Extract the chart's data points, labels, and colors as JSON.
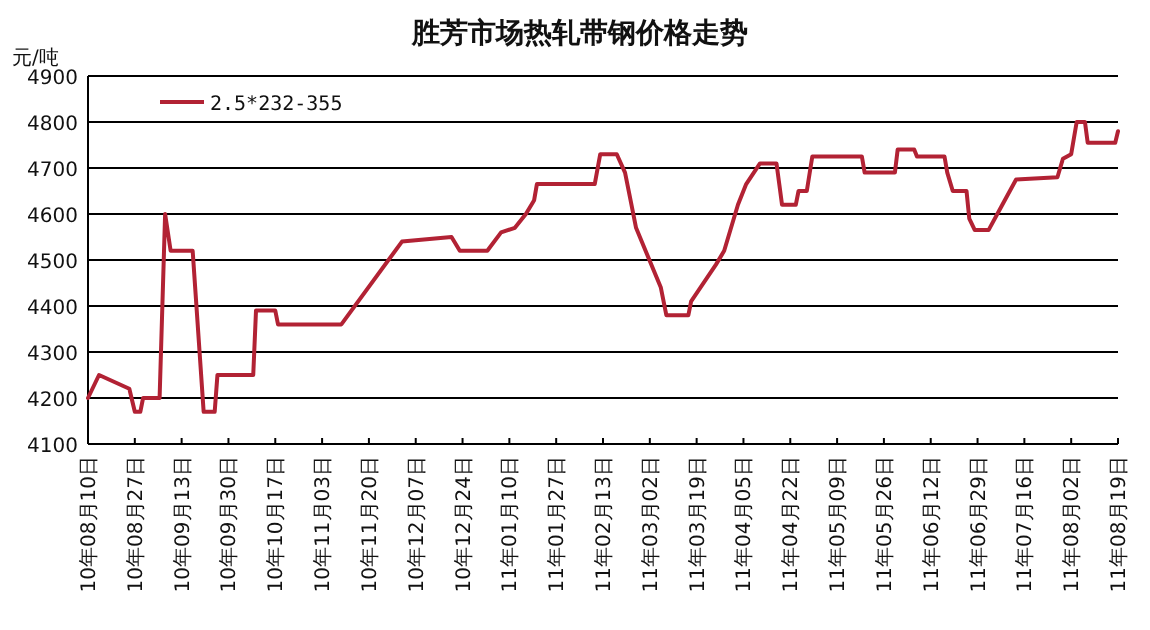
{
  "chart_data": {
    "type": "line",
    "title": "胜芳市场热轧带钢价格走势",
    "ylabel": "元/吨",
    "x": [
      "2010-08-10",
      "2010-08-14",
      "2010-08-25",
      "2010-08-27",
      "2010-08-29",
      "2010-08-30",
      "2010-09-05",
      "2010-09-07",
      "2010-09-09",
      "2010-09-17",
      "2010-09-21",
      "2010-09-25",
      "2010-09-26",
      "2010-10-09",
      "2010-10-10",
      "2010-10-17",
      "2010-10-18",
      "2010-11-10",
      "2010-12-02",
      "2010-12-20",
      "2010-12-23",
      "2011-01-02",
      "2011-01-07",
      "2011-01-12",
      "2011-01-16",
      "2011-01-19",
      "2011-01-20",
      "2011-02-10",
      "2011-02-12",
      "2011-02-18",
      "2011-02-21",
      "2011-02-23",
      "2011-02-25",
      "2011-03-06",
      "2011-03-08",
      "2011-03-16",
      "2011-03-17",
      "2011-03-26",
      "2011-03-29",
      "2011-04-03",
      "2011-04-06",
      "2011-04-11",
      "2011-04-17",
      "2011-04-18",
      "2011-04-19",
      "2011-04-24",
      "2011-04-25",
      "2011-04-28",
      "2011-04-30",
      "2011-05-18",
      "2011-05-19",
      "2011-05-30",
      "2011-05-31",
      "2011-06-06",
      "2011-06-07",
      "2011-06-17",
      "2011-06-18",
      "2011-06-20",
      "2011-06-25",
      "2011-06-26",
      "2011-06-28",
      "2011-07-03",
      "2011-07-08",
      "2011-07-13",
      "2011-07-28",
      "2011-07-30",
      "2011-08-02",
      "2011-08-04",
      "2011-08-07",
      "2011-08-08",
      "2011-08-18",
      "2011-08-19"
    ],
    "series": [
      {
        "name": "2.5*232-355",
        "color": "#b22234",
        "values": [
          4200,
          4250,
          4220,
          4170,
          4170,
          4200,
          4200,
          4600,
          4520,
          4520,
          4170,
          4170,
          4250,
          4250,
          4390,
          4390,
          4360,
          4360,
          4540,
          4550,
          4520,
          4520,
          4560,
          4570,
          4600,
          4630,
          4665,
          4665,
          4730,
          4730,
          4690,
          4630,
          4570,
          4440,
          4380,
          4380,
          4410,
          4490,
          4520,
          4620,
          4665,
          4710,
          4710,
          4665,
          4620,
          4620,
          4650,
          4650,
          4725,
          4725,
          4690,
          4690,
          4740,
          4740,
          4725,
          4725,
          4690,
          4650,
          4650,
          4590,
          4565,
          4565,
          4620,
          4675,
          4680,
          4720,
          4730,
          4800,
          4800,
          4755,
          4755,
          4780
        ]
      }
    ],
    "xlim": [
      "2010-08-10",
      "2011-08-19"
    ],
    "xticks": [
      {
        "value": "2010-08-10",
        "label": "10年08月10日"
      },
      {
        "value": "2010-08-27",
        "label": "10年08月27日"
      },
      {
        "value": "2010-09-13",
        "label": "10年09月13日"
      },
      {
        "value": "2010-09-30",
        "label": "10年09月30日"
      },
      {
        "value": "2010-10-17",
        "label": "10年10月17日"
      },
      {
        "value": "2010-11-03",
        "label": "10年11月03日"
      },
      {
        "value": "2010-11-20",
        "label": "10年11月20日"
      },
      {
        "value": "2010-12-07",
        "label": "10年12月07日"
      },
      {
        "value": "2010-12-24",
        "label": "10年12月24日"
      },
      {
        "value": "2011-01-10",
        "label": "11年01月10日"
      },
      {
        "value": "2011-01-27",
        "label": "11年01月27日"
      },
      {
        "value": "2011-02-13",
        "label": "11年02月13日"
      },
      {
        "value": "2011-03-02",
        "label": "11年03月02日"
      },
      {
        "value": "2011-03-19",
        "label": "11年03月19日"
      },
      {
        "value": "2011-04-05",
        "label": "11年04月05日"
      },
      {
        "value": "2011-04-22",
        "label": "11年04月22日"
      },
      {
        "value": "2011-05-09",
        "label": "11年05月09日"
      },
      {
        "value": "2011-05-26",
        "label": "11年05月26日"
      },
      {
        "value": "2011-06-12",
        "label": "11年06月12日"
      },
      {
        "value": "2011-06-29",
        "label": "11年06月29日"
      },
      {
        "value": "2011-07-16",
        "label": "11年07月16日"
      },
      {
        "value": "2011-08-02",
        "label": "11年08月02日"
      },
      {
        "value": "2011-08-19",
        "label": "11年08月19日"
      }
    ],
    "ylim": [
      4100,
      4900
    ],
    "yticks": [
      4100,
      4200,
      4300,
      4400,
      4500,
      4600,
      4700,
      4800,
      4900
    ],
    "grid": "y",
    "legend": "top left"
  }
}
